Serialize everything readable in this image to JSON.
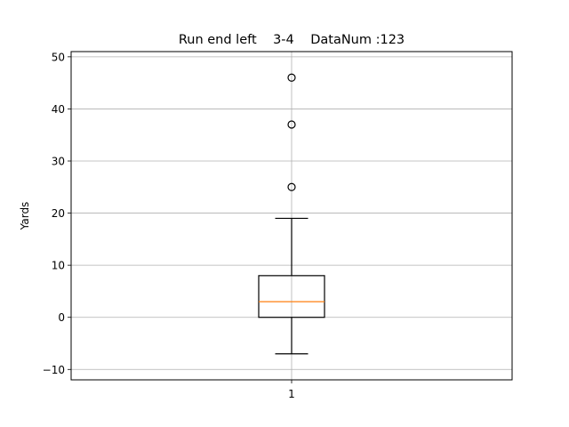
{
  "chart_data": {
    "type": "box",
    "title": "Run end left    3-4    DataNum :123",
    "xlabel": "",
    "ylabel": "Yards",
    "categories": [
      "1"
    ],
    "ylim": [
      -12,
      51
    ],
    "yticks": [
      -10,
      0,
      10,
      20,
      30,
      40,
      50
    ],
    "grid": true,
    "boxes": [
      {
        "category": "1",
        "whisker_low": -7,
        "q1": 0,
        "median": 3,
        "q3": 8,
        "whisker_high": 19,
        "outliers": [
          25,
          37,
          46
        ]
      }
    ],
    "colors": {
      "median": "#ff7f0e",
      "box": "#000000",
      "grid": "#b0b0b0"
    }
  }
}
